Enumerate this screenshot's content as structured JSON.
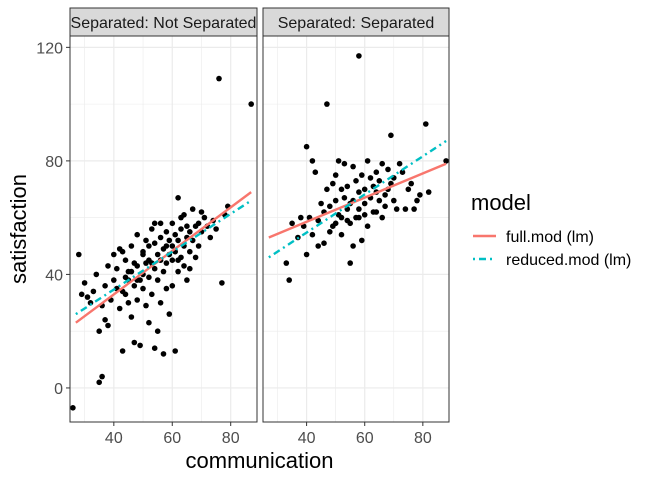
{
  "chart_data": {
    "type": "scatter",
    "xlabel": "communication",
    "ylabel": "satisfaction",
    "xlim": [
      25,
      89
    ],
    "ylim": [
      -12,
      124
    ],
    "x_ticks": [
      40,
      60,
      80
    ],
    "y_ticks": [
      0,
      40,
      80,
      120
    ],
    "x_tick_labels": [
      "40",
      "60",
      "80"
    ],
    "y_tick_labels": [
      "0",
      "40",
      "80",
      "120"
    ],
    "grid": true,
    "legend": {
      "title": "model",
      "placement": "right",
      "entries": [
        {
          "label": "full.mod (lm)",
          "color": "#F8766D",
          "linetype": "solid"
        },
        {
          "label": "reduced.mod (lm)",
          "color": "#00BFC4",
          "linetype": "dotdash"
        }
      ]
    },
    "panels": [
      {
        "strip": "Separated: Not Separated",
        "series": [
          {
            "name": "full.mod (lm)",
            "color": "#F8766D",
            "linetype": "solid",
            "x": [
              27,
              87
            ],
            "y": [
              23,
              69
            ]
          },
          {
            "name": "reduced.mod (lm)",
            "color": "#00BFC4",
            "linetype": "dotdash",
            "x": [
              27,
              87
            ],
            "y": [
              26,
              66
            ]
          }
        ],
        "points": [
          [
            26,
            -7
          ],
          [
            28,
            47
          ],
          [
            29,
            33
          ],
          [
            30,
            37
          ],
          [
            31,
            32
          ],
          [
            32,
            30
          ],
          [
            33,
            34
          ],
          [
            34,
            40
          ],
          [
            35,
            20
          ],
          [
            35,
            2
          ],
          [
            36,
            4
          ],
          [
            36,
            29
          ],
          [
            37,
            24
          ],
          [
            37,
            36
          ],
          [
            38,
            43
          ],
          [
            38,
            22
          ],
          [
            39,
            31
          ],
          [
            40,
            47
          ],
          [
            40,
            38
          ],
          [
            41,
            35
          ],
          [
            41,
            42
          ],
          [
            42,
            49
          ],
          [
            42,
            28
          ],
          [
            43,
            34
          ],
          [
            43,
            48
          ],
          [
            43,
            13
          ],
          [
            44,
            39
          ],
          [
            44,
            45
          ],
          [
            45,
            38
          ],
          [
            45,
            30
          ],
          [
            46,
            41
          ],
          [
            46,
            50
          ],
          [
            46,
            25
          ],
          [
            47,
            44
          ],
          [
            47,
            36
          ],
          [
            48,
            43
          ],
          [
            48,
            31
          ],
          [
            48,
            54
          ],
          [
            49,
            38
          ],
          [
            49,
            15
          ],
          [
            50,
            35
          ],
          [
            50,
            47
          ],
          [
            50,
            48
          ],
          [
            51,
            44
          ],
          [
            51,
            29
          ],
          [
            51,
            52
          ],
          [
            52,
            39
          ],
          [
            52,
            50
          ],
          [
            52,
            23
          ],
          [
            53,
            56
          ],
          [
            53,
            44
          ],
          [
            53,
            33
          ],
          [
            54,
            42
          ],
          [
            54,
            51
          ],
          [
            54,
            58
          ],
          [
            55,
            47
          ],
          [
            55,
            38
          ],
          [
            55,
            20
          ],
          [
            56,
            53
          ],
          [
            56,
            45
          ],
          [
            56,
            58
          ],
          [
            57,
            41
          ],
          [
            57,
            49
          ],
          [
            57,
            12
          ],
          [
            58,
            55
          ],
          [
            58,
            44
          ],
          [
            58,
            35
          ],
          [
            59,
            52
          ],
          [
            59,
            47
          ],
          [
            59,
            26
          ],
          [
            60,
            50
          ],
          [
            60,
            58
          ],
          [
            60,
            45
          ],
          [
            61,
            48
          ],
          [
            61,
            54
          ],
          [
            61,
            13
          ],
          [
            62,
            67
          ],
          [
            62,
            52
          ],
          [
            62,
            41
          ],
          [
            63,
            56
          ],
          [
            63,
            46
          ],
          [
            63,
            60
          ],
          [
            64,
            50
          ],
          [
            64,
            43
          ],
          [
            64,
            61
          ],
          [
            65,
            53
          ],
          [
            65,
            38
          ],
          [
            65,
            57
          ],
          [
            66,
            48
          ],
          [
            66,
            55
          ],
          [
            67,
            52
          ],
          [
            67,
            63
          ],
          [
            68,
            57
          ],
          [
            68,
            46
          ],
          [
            69,
            50
          ],
          [
            69,
            58
          ],
          [
            70,
            55
          ],
          [
            70,
            62
          ],
          [
            71,
            60
          ],
          [
            72,
            57
          ],
          [
            73,
            53
          ],
          [
            74,
            59
          ],
          [
            75,
            56
          ],
          [
            76,
            109
          ],
          [
            77,
            37
          ],
          [
            78,
            61
          ],
          [
            79,
            64
          ],
          [
            87,
            100
          ],
          [
            47,
            16
          ],
          [
            54,
            14
          ],
          [
            45,
            41
          ],
          [
            50,
            40
          ],
          [
            56,
            30
          ],
          [
            60,
            36
          ],
          [
            44,
            33
          ],
          [
            52,
            45
          ],
          [
            58,
            50
          ],
          [
            62,
            45
          ],
          [
            66,
            42
          ],
          [
            48,
            38
          ]
        ]
      },
      {
        "strip": "Separated: Separated",
        "series": [
          {
            "name": "full.mod (lm)",
            "color": "#F8766D",
            "linetype": "solid",
            "x": [
              27,
              88
            ],
            "y": [
              53,
              79
            ]
          },
          {
            "name": "reduced.mod (lm)",
            "color": "#00BFC4",
            "linetype": "dotdash",
            "x": [
              27,
              88
            ],
            "y": [
              46,
              87
            ]
          }
        ],
        "points": [
          [
            33,
            44
          ],
          [
            34,
            38
          ],
          [
            35,
            58
          ],
          [
            37,
            53
          ],
          [
            38,
            60
          ],
          [
            39,
            57
          ],
          [
            40,
            85
          ],
          [
            40,
            47
          ],
          [
            41,
            60
          ],
          [
            42,
            80
          ],
          [
            42,
            54
          ],
          [
            43,
            76
          ],
          [
            44,
            59
          ],
          [
            45,
            65
          ],
          [
            46,
            51
          ],
          [
            46,
            62
          ],
          [
            47,
            100
          ],
          [
            47,
            70
          ],
          [
            48,
            64
          ],
          [
            48,
            55
          ],
          [
            49,
            72
          ],
          [
            49,
            57
          ],
          [
            50,
            58
          ],
          [
            50,
            66
          ],
          [
            51,
            80
          ],
          [
            51,
            61
          ],
          [
            52,
            70
          ],
          [
            52,
            54
          ],
          [
            53,
            67
          ],
          [
            53,
            79
          ],
          [
            54,
            63
          ],
          [
            54,
            71
          ],
          [
            55,
            58
          ],
          [
            55,
            65
          ],
          [
            55,
            44
          ],
          [
            56,
            78
          ],
          [
            56,
            66
          ],
          [
            57,
            60
          ],
          [
            57,
            73
          ],
          [
            58,
            117
          ],
          [
            58,
            69
          ],
          [
            58,
            63
          ],
          [
            59,
            52
          ],
          [
            59,
            75
          ],
          [
            60,
            65
          ],
          [
            60,
            70
          ],
          [
            61,
            80
          ],
          [
            61,
            57
          ],
          [
            62,
            67
          ],
          [
            62,
            74
          ],
          [
            63,
            71
          ],
          [
            63,
            62
          ],
          [
            64,
            69
          ],
          [
            64,
            76
          ],
          [
            65,
            66
          ],
          [
            65,
            73
          ],
          [
            66,
            60
          ],
          [
            66,
            79
          ],
          [
            67,
            68
          ],
          [
            67,
            64
          ],
          [
            68,
            77
          ],
          [
            68,
            70
          ],
          [
            69,
            89
          ],
          [
            69,
            72
          ],
          [
            70,
            74
          ],
          [
            70,
            66
          ],
          [
            71,
            63
          ],
          [
            72,
            79
          ],
          [
            73,
            76
          ],
          [
            74,
            63
          ],
          [
            75,
            70
          ],
          [
            76,
            72
          ],
          [
            77,
            63
          ],
          [
            78,
            66
          ],
          [
            79,
            68
          ],
          [
            81,
            93
          ],
          [
            82,
            69
          ],
          [
            88,
            80
          ],
          [
            44,
            50
          ],
          [
            52,
            60
          ],
          [
            56,
            50
          ],
          [
            60,
            61
          ],
          [
            64,
            62
          ],
          [
            50,
            75
          ],
          [
            54,
            59
          ],
          [
            58,
            60
          ]
        ]
      }
    ]
  }
}
